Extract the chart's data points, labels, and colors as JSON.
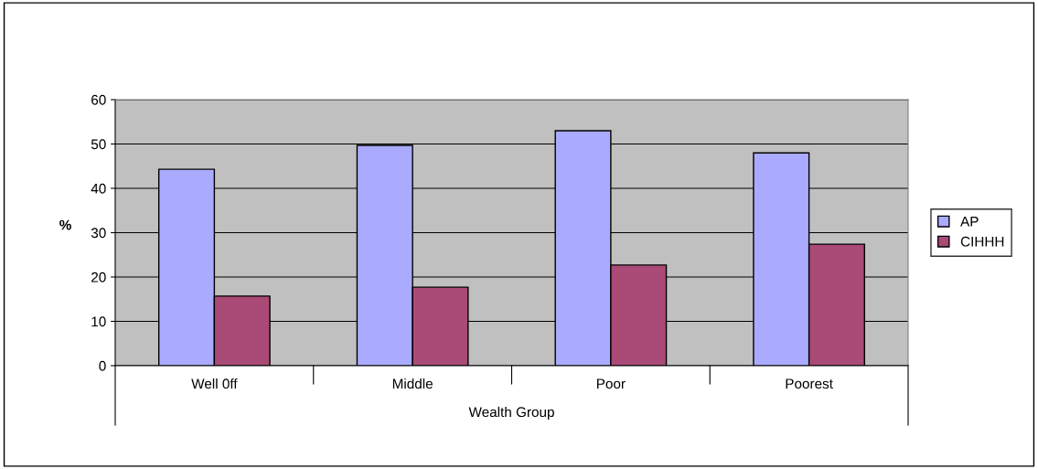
{
  "chart_data": {
    "type": "bar",
    "xlabel": "Wealth Group",
    "ylabel": "%",
    "categories": [
      "Well 0ff",
      "Middle",
      "Poor",
      "Poorest"
    ],
    "series": [
      {
        "name": "AP",
        "color": "#aaaaff",
        "values": [
          44.3,
          49.7,
          53.0,
          48.0
        ]
      },
      {
        "name": "CIHHH",
        "color": "#aa4a76",
        "values": [
          15.7,
          17.7,
          22.7,
          27.4
        ]
      }
    ],
    "ylim": [
      0,
      60
    ],
    "yticks": [
      0,
      10,
      20,
      30,
      40,
      50,
      60
    ],
    "grid": "y",
    "legend": "right"
  }
}
